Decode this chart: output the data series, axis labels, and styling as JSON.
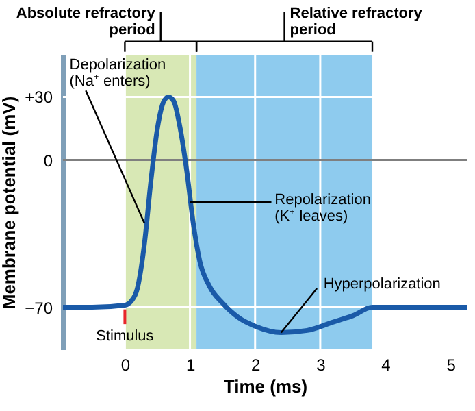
{
  "chart_data": {
    "type": "line",
    "xlabel": "Time (ms)",
    "ylabel": "Membrane potential (mV)",
    "x": [
      -0.95,
      -0.5,
      0,
      0.1,
      0.2,
      0.3,
      0.4,
      0.5,
      0.6,
      0.67,
      0.75,
      0.85,
      0.95,
      1.05,
      1.15,
      1.3,
      1.5,
      1.75,
      2.0,
      2.4,
      2.8,
      3.2,
      3.5,
      3.8,
      4.5,
      5.25
    ],
    "series": [
      {
        "color": "#1a5aa8",
        "values": [
          -70,
          -70,
          -69,
          -67,
          -60,
          -40,
          -10,
          15,
          28,
          30,
          28,
          15,
          -5,
          -30,
          -48,
          -60,
          -68,
          -75,
          -79,
          -82,
          -81,
          -77,
          -74,
          -70,
          -70,
          -70
        ]
      }
    ],
    "xlim": [
      -0.95,
      5.25
    ],
    "ylim": [
      -90,
      50
    ],
    "xticks": [
      0,
      1,
      2,
      3,
      4,
      5
    ],
    "yticks": [
      {
        "value": -70,
        "label": "−70"
      },
      0,
      {
        "value": 30,
        "label": "+30"
      }
    ],
    "grid": true,
    "ref_lines": [
      {
        "axis": "y",
        "value": 0,
        "color": "#000000"
      }
    ],
    "bands": [
      {
        "axis": "x",
        "from": 0,
        "to": 1.1,
        "label": "Absolute refractory period",
        "color": "#d8e8b5"
      },
      {
        "axis": "x",
        "from": 1.1,
        "to": 3.8,
        "label": "Relative refractory period",
        "color": "#8ecbee"
      }
    ],
    "annotations": [
      {
        "text": "Depolarization\n(Na⁺ enters)",
        "x": 0.3,
        "y": -30
      },
      {
        "text": "Repolarization\n(K⁺ leaves)",
        "x": 1.0,
        "y": -20
      },
      {
        "text": "Hyperpolarization",
        "x": 2.4,
        "y": -82
      },
      {
        "text": "Stimulus",
        "x": 0,
        "y": -70
      }
    ]
  }
}
